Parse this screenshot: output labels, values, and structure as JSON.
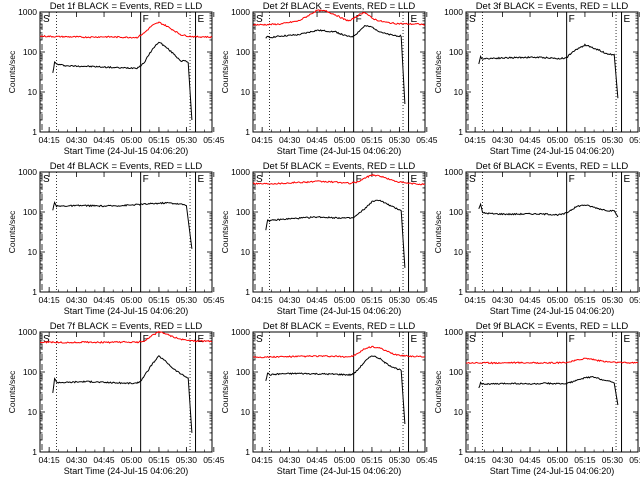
{
  "figure": {
    "xticks": [
      "04:15",
      "04:30",
      "04:45",
      "05:00",
      "05:15",
      "05:30",
      "05:45"
    ],
    "xlabel": "Start Time (24-Jul-15 04:06:20)",
    "ylabel": "Counts/sec",
    "yticks": [
      "1",
      "10",
      "100",
      "1000"
    ],
    "markers": [
      "S",
      "F",
      "E"
    ],
    "colors": {
      "events": "#000000",
      "lld": "#ff0000"
    }
  },
  "chart_data": [
    {
      "type": "line",
      "title": "Det 1f BLACK = Events, RED = LLD",
      "xlabel": "Start Time (24-Jul-15 04:06:20)",
      "ylabel": "Counts/sec",
      "ylim": [
        1,
        1000
      ],
      "xlim": [
        5,
        99
      ],
      "yscale": "log",
      "dotted_lines": [
        14,
        87
      ],
      "solid_lines": [
        60,
        90
      ],
      "marker_text": [
        "S",
        "F",
        "E"
      ],
      "events_tail": 1,
      "series": [
        {
          "name": "Events",
          "x": [
            12,
            13,
            14,
            16,
            20,
            30,
            40,
            50,
            58,
            60,
            62,
            66,
            70,
            74,
            78,
            82,
            84,
            86,
            88
          ],
          "values": [
            30,
            55,
            50,
            48,
            45,
            44,
            42,
            40,
            40,
            45,
            55,
            110,
            180,
            130,
            90,
            60,
            60,
            55,
            2
          ]
        },
        {
          "name": "LLD",
          "x": [
            5,
            10,
            20,
            30,
            40,
            50,
            58,
            62,
            66,
            70,
            74,
            78,
            82,
            86,
            90,
            95,
            99
          ],
          "values": [
            250,
            245,
            240,
            235,
            240,
            235,
            230,
            300,
            450,
            550,
            450,
            350,
            270,
            250,
            240,
            240,
            235
          ]
        }
      ]
    },
    {
      "type": "line",
      "title": "Det 2f BLACK = Events, RED = LLD",
      "xlabel": "Start Time (24-Jul-15 04:06:20)",
      "ylabel": "Counts/sec",
      "ylim": [
        1,
        1000
      ],
      "xlim": [
        5,
        99
      ],
      "yscale": "log",
      "dotted_lines": [
        14,
        87
      ],
      "solid_lines": [
        60,
        90
      ],
      "marker_text": [
        "S",
        "F",
        "E"
      ],
      "events_tail": 5,
      "series": [
        {
          "name": "Events",
          "x": [
            12,
            13,
            14,
            20,
            30,
            40,
            50,
            55,
            58,
            60,
            62,
            66,
            70,
            74,
            78,
            82,
            86,
            88
          ],
          "values": [
            220,
            240,
            230,
            250,
            270,
            350,
            320,
            260,
            240,
            250,
            300,
            450,
            420,
            330,
            280,
            260,
            250,
            5
          ]
        },
        {
          "name": "LLD",
          "x": [
            5,
            10,
            20,
            30,
            35,
            40,
            45,
            50,
            55,
            58,
            62,
            66,
            70,
            74,
            78,
            82,
            86,
            90,
            95,
            99
          ],
          "values": [
            480,
            480,
            500,
            600,
            800,
            1100,
            1050,
            850,
            650,
            600,
            800,
            1000,
            700,
            600,
            550,
            520,
            510,
            500,
            500,
            480
          ]
        }
      ]
    },
    {
      "type": "line",
      "title": "Det 3f BLACK = Events, RED = LLD",
      "xlabel": "Start Time (24-Jul-15 04:06:20)",
      "ylabel": "Counts/sec",
      "ylim": [
        1,
        1000
      ],
      "xlim": [
        5,
        99
      ],
      "yscale": "log",
      "dotted_lines": [
        14,
        87
      ],
      "solid_lines": [
        60,
        90
      ],
      "marker_text": [
        "S",
        "F",
        "E"
      ],
      "events_tail": 7,
      "series": [
        {
          "name": "Events",
          "x": [
            12,
            13,
            14,
            20,
            30,
            40,
            50,
            55,
            58,
            60,
            62,
            66,
            70,
            74,
            78,
            82,
            86,
            88
          ],
          "values": [
            50,
            75,
            68,
            70,
            72,
            74,
            72,
            68,
            70,
            72,
            90,
            120,
            150,
            130,
            110,
            90,
            85,
            7
          ]
        }
      ]
    },
    {
      "type": "line",
      "title": "Det 4f BLACK = Events, RED = LLD",
      "xlabel": "Start Time (24-Jul-15 04:06:20)",
      "ylabel": "Counts/sec",
      "ylim": [
        1,
        1000
      ],
      "xlim": [
        5,
        99
      ],
      "yscale": "log",
      "dotted_lines": [
        14,
        87
      ],
      "solid_lines": [
        60,
        90
      ],
      "marker_text": [
        "S",
        "F",
        "E"
      ],
      "events_tail": 12,
      "series": [
        {
          "name": "Events",
          "x": [
            12,
            13,
            14,
            16,
            20,
            30,
            40,
            50,
            55,
            60,
            65,
            70,
            75,
            80,
            85,
            88
          ],
          "values": [
            110,
            180,
            140,
            140,
            142,
            145,
            140,
            145,
            150,
            155,
            160,
            165,
            170,
            160,
            150,
            12
          ]
        }
      ]
    },
    {
      "type": "line",
      "title": "Det 5f BLACK = Events, RED = LLD",
      "xlabel": "Start Time (24-Jul-15 04:06:20)",
      "ylabel": "Counts/sec",
      "ylim": [
        1,
        1000
      ],
      "xlim": [
        5,
        99
      ],
      "yscale": "log",
      "dotted_lines": [
        14,
        87
      ],
      "solid_lines": [
        60,
        90
      ],
      "marker_text": [
        "S",
        "F",
        "E"
      ],
      "events_tail": 4,
      "series": [
        {
          "name": "Events",
          "x": [
            12,
            13,
            14,
            20,
            30,
            40,
            50,
            58,
            60,
            62,
            66,
            70,
            74,
            78,
            82,
            86,
            88
          ],
          "values": [
            35,
            65,
            60,
            65,
            70,
            75,
            72,
            70,
            72,
            85,
            120,
            180,
            200,
            160,
            130,
            110,
            4
          ]
        },
        {
          "name": "LLD",
          "x": [
            5,
            10,
            20,
            30,
            40,
            50,
            58,
            62,
            66,
            70,
            74,
            78,
            82,
            86,
            90,
            95,
            99
          ],
          "values": [
            520,
            510,
            520,
            550,
            580,
            560,
            520,
            560,
            700,
            850,
            800,
            700,
            600,
            550,
            520,
            500,
            490
          ]
        }
      ]
    },
    {
      "type": "line",
      "title": "Det 6f BLACK = Events, RED = LLD",
      "xlabel": "Start Time (24-Jul-15 04:06:20)",
      "ylabel": "Counts/sec",
      "ylim": [
        1,
        1000
      ],
      "xlim": [
        5,
        99
      ],
      "yscale": "log",
      "dotted_lines": [
        14,
        87
      ],
      "solid_lines": [
        60,
        90
      ],
      "marker_text": [
        "S",
        "F",
        "E"
      ],
      "events_tail": 75,
      "series": [
        {
          "name": "Events",
          "x": [
            12,
            13,
            14,
            20,
            30,
            40,
            50,
            55,
            58,
            60,
            62,
            66,
            70,
            74,
            78,
            82,
            86,
            88
          ],
          "values": [
            120,
            160,
            95,
            90,
            88,
            90,
            88,
            85,
            88,
            95,
            110,
            140,
            150,
            135,
            120,
            110,
            105,
            75
          ]
        }
      ]
    },
    {
      "type": "line",
      "title": "Det 7f BLACK = Events, RED = LLD",
      "xlabel": "Start Time (24-Jul-15 04:06:20)",
      "ylabel": "Counts/sec",
      "ylim": [
        1,
        1000
      ],
      "xlim": [
        5,
        99
      ],
      "yscale": "log",
      "dotted_lines": [
        14,
        87
      ],
      "solid_lines": [
        60,
        90
      ],
      "marker_text": [
        "S",
        "F",
        "E"
      ],
      "events_tail": 3,
      "series": [
        {
          "name": "Events",
          "x": [
            12,
            13,
            14,
            20,
            30,
            40,
            50,
            58,
            60,
            62,
            66,
            70,
            74,
            78,
            82,
            86,
            88
          ],
          "values": [
            30,
            70,
            55,
            55,
            58,
            55,
            53,
            52,
            60,
            80,
            150,
            250,
            180,
            120,
            90,
            70,
            3
          ]
        },
        {
          "name": "LLD",
          "x": [
            5,
            10,
            20,
            30,
            40,
            50,
            58,
            62,
            66,
            70,
            74,
            78,
            82,
            86,
            90,
            95,
            99
          ],
          "values": [
            550,
            560,
            540,
            560,
            550,
            560,
            550,
            600,
            800,
            1000,
            900,
            750,
            650,
            620,
            600,
            590,
            590
          ]
        }
      ]
    },
    {
      "type": "line",
      "title": "Det 8f BLACK = Events, RED = LLD",
      "xlabel": "Start Time (24-Jul-15 04:06:20)",
      "ylabel": "Counts/sec",
      "ylim": [
        1,
        1000
      ],
      "xlim": [
        5,
        99
      ],
      "yscale": "log",
      "dotted_lines": [
        14,
        87
      ],
      "solid_lines": [
        60,
        90
      ],
      "marker_text": [
        "S",
        "F",
        "E"
      ],
      "events_tail": 5,
      "series": [
        {
          "name": "Events",
          "x": [
            12,
            13,
            14,
            20,
            30,
            40,
            50,
            58,
            60,
            62,
            66,
            70,
            74,
            78,
            82,
            86,
            88
          ],
          "values": [
            60,
            95,
            85,
            90,
            92,
            90,
            88,
            85,
            90,
            110,
            180,
            260,
            220,
            160,
            130,
            110,
            5
          ]
        },
        {
          "name": "LLD",
          "x": [
            5,
            10,
            20,
            30,
            40,
            50,
            58,
            62,
            66,
            70,
            74,
            78,
            82,
            86,
            90,
            95,
            99
          ],
          "values": [
            240,
            235,
            240,
            245,
            250,
            245,
            240,
            280,
            380,
            430,
            400,
            330,
            280,
            260,
            250,
            245,
            240
          ]
        }
      ]
    },
    {
      "type": "line",
      "title": "Det 9f BLACK = Events, RED = LLD",
      "xlabel": "Start Time (24-Jul-15 04:06:20)",
      "ylabel": "Counts/sec",
      "ylim": [
        1,
        1000
      ],
      "xlim": [
        5,
        99
      ],
      "yscale": "log",
      "dotted_lines": [
        14,
        87
      ],
      "solid_lines": [
        60,
        90
      ],
      "marker_text": [
        "S",
        "F",
        "E"
      ],
      "events_tail": 15,
      "series": [
        {
          "name": "Events",
          "x": [
            12,
            13,
            14,
            20,
            30,
            40,
            50,
            58,
            62,
            66,
            70,
            74,
            78,
            82,
            86,
            88
          ],
          "values": [
            40,
            55,
            50,
            50,
            52,
            50,
            52,
            50,
            55,
            62,
            72,
            75,
            68,
            60,
            55,
            15
          ]
        },
        {
          "name": "LLD",
          "x": [
            5,
            10,
            20,
            30,
            40,
            50,
            58,
            62,
            66,
            70,
            74,
            78,
            82,
            86,
            90,
            95,
            99
          ],
          "values": [
            170,
            170,
            168,
            172,
            170,
            168,
            170,
            180,
            200,
            220,
            210,
            190,
            180,
            175,
            172,
            170,
            170
          ]
        }
      ]
    }
  ]
}
